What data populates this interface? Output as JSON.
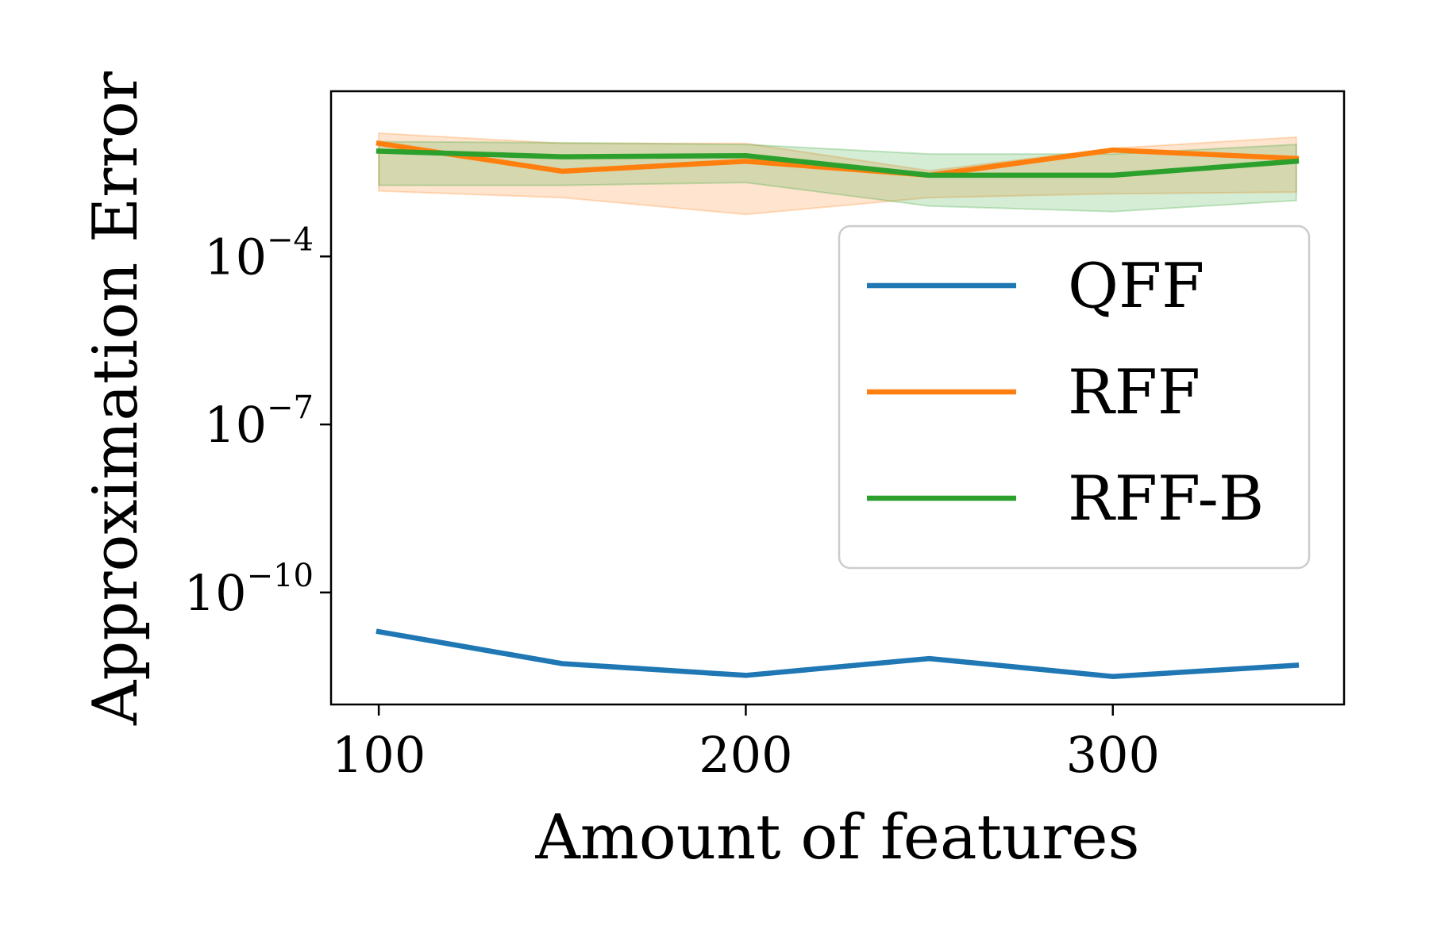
{
  "chart_data": {
    "type": "line",
    "xlabel": "Amount of features",
    "ylabel": "Approximation Error",
    "yscale": "log",
    "xlim": [
      87,
      363
    ],
    "ylim_exponent": [
      -12,
      -1.05
    ],
    "x_ticks": [
      100,
      200,
      300
    ],
    "y_ticks": [
      {
        "base": "10",
        "exp": "−4",
        "exponent": -4
      },
      {
        "base": "10",
        "exp": "−7",
        "exponent": -7
      },
      {
        "base": "10",
        "exp": "−10",
        "exponent": -10
      }
    ],
    "grid": false,
    "legend_position": "right",
    "x": [
      100,
      150,
      200,
      250,
      300,
      350
    ],
    "series": [
      {
        "name": "QFF",
        "color": "#1f77b4",
        "values_exponent": [
          -10.7,
          -11.27,
          -11.48,
          -11.18,
          -11.5,
          -11.3
        ]
      },
      {
        "name": "RFF",
        "color": "#ff7f0e",
        "values_exponent": [
          -1.98,
          -2.48,
          -2.3,
          -2.55,
          -2.1,
          -2.25
        ],
        "band_upper_exponent": [
          -1.8,
          -1.98,
          -1.98,
          -2.47,
          -2.07,
          -1.87
        ],
        "band_lower_exponent": [
          -2.83,
          -2.95,
          -3.25,
          -2.95,
          -2.88,
          -2.85
        ]
      },
      {
        "name": "RFF-B",
        "color": "#2ca02c",
        "values_exponent": [
          -2.12,
          -2.22,
          -2.2,
          -2.55,
          -2.55,
          -2.3
        ],
        "band_upper_exponent": [
          -1.95,
          -1.97,
          -2.0,
          -2.17,
          -2.17,
          -2.0
        ],
        "band_lower_exponent": [
          -2.73,
          -2.73,
          -2.68,
          -3.1,
          -3.2,
          -3.0
        ]
      }
    ]
  }
}
